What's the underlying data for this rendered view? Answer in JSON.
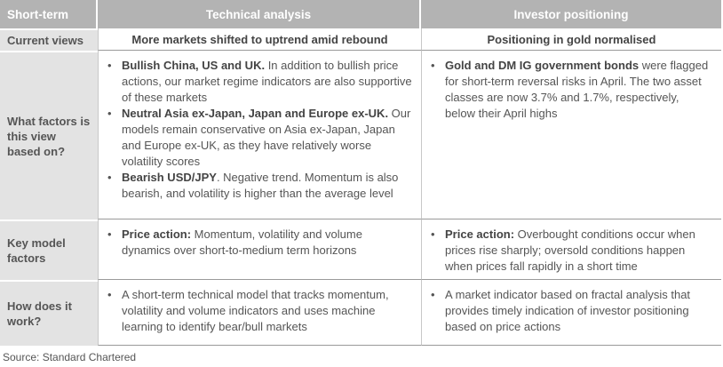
{
  "headers": {
    "col1": "Short-term",
    "col2": "Technical analysis",
    "col3": "Investor positioning"
  },
  "rows": {
    "current_views": {
      "label": "Current views",
      "technical": "More markets shifted to uptrend amid rebound",
      "positioning": "Positioning in gold normalised"
    },
    "factors": {
      "label": "What factors is this view based on?",
      "technical": [
        {
          "bold": "Bullish China, US and UK.",
          "text": " In addition to bullish price actions, our market regime indicators are also supportive of these markets"
        },
        {
          "bold": "Neutral Asia ex-Japan, Japan and Europe ex-UK.",
          "text": " Our models remain conservative on Asia ex-Japan, Japan and Europe ex-UK, as they have relatively worse volatility scores"
        },
        {
          "bold": "Bearish USD/JPY",
          "text": ". Negative trend. Momentum is also bearish, and volatility is higher than the average level"
        }
      ],
      "positioning": [
        {
          "bold": "Gold and DM IG government bonds",
          "text": " were flagged for short-term reversal risks in April. The two asset classes are now 3.7% and 1.7%, respectively, below their April highs"
        }
      ]
    },
    "key_factors": {
      "label": "Key model factors",
      "technical": [
        {
          "bold": "Price action:",
          "text": " Momentum, volatility and volume dynamics over short-to-medium term horizons"
        }
      ],
      "positioning": [
        {
          "bold": "Price action:",
          "text": " Overbought conditions occur when prices rise sharply; oversold conditions happen when prices fall rapidly in a short time"
        }
      ]
    },
    "how": {
      "label": "How does it work?",
      "technical": [
        {
          "bold": "",
          "text": "A short-term technical model that tracks momentum, volatility and volume indicators and uses machine learning to identify bear/bull markets"
        }
      ],
      "positioning": [
        {
          "bold": "",
          "text": "A market indicator based on fractal analysis that provides timely indication of investor positioning based on price actions"
        }
      ]
    }
  },
  "bullet": "•",
  "source": "Source: Standard Chartered"
}
